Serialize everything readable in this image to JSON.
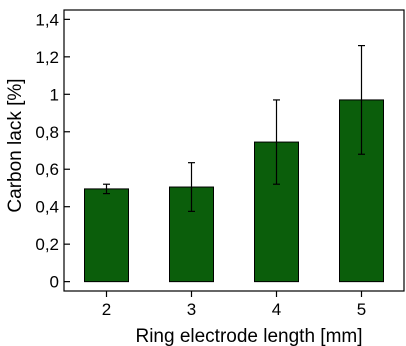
{
  "chart_data": {
    "type": "bar",
    "xlabel": "Ring electrode length [mm]",
    "ylabel": "Carbon lack [%]",
    "categories": [
      "2",
      "3",
      "4",
      "5"
    ],
    "values": [
      0.495,
      0.505,
      0.745,
      0.97
    ],
    "errors": [
      0.025,
      0.13,
      0.225,
      0.29
    ],
    "ylim": [
      -0.05,
      1.45
    ],
    "yticks": [
      0,
      0.2,
      0.4,
      0.6,
      0.8,
      1,
      1.2,
      1.4
    ],
    "ytick_labels": [
      "0",
      "0,2",
      "0,4",
      "0,6",
      "0,8",
      "1",
      "1,2",
      "1,4"
    ],
    "bar_color": "#0b5e0b",
    "grid": false,
    "legend": "none"
  }
}
